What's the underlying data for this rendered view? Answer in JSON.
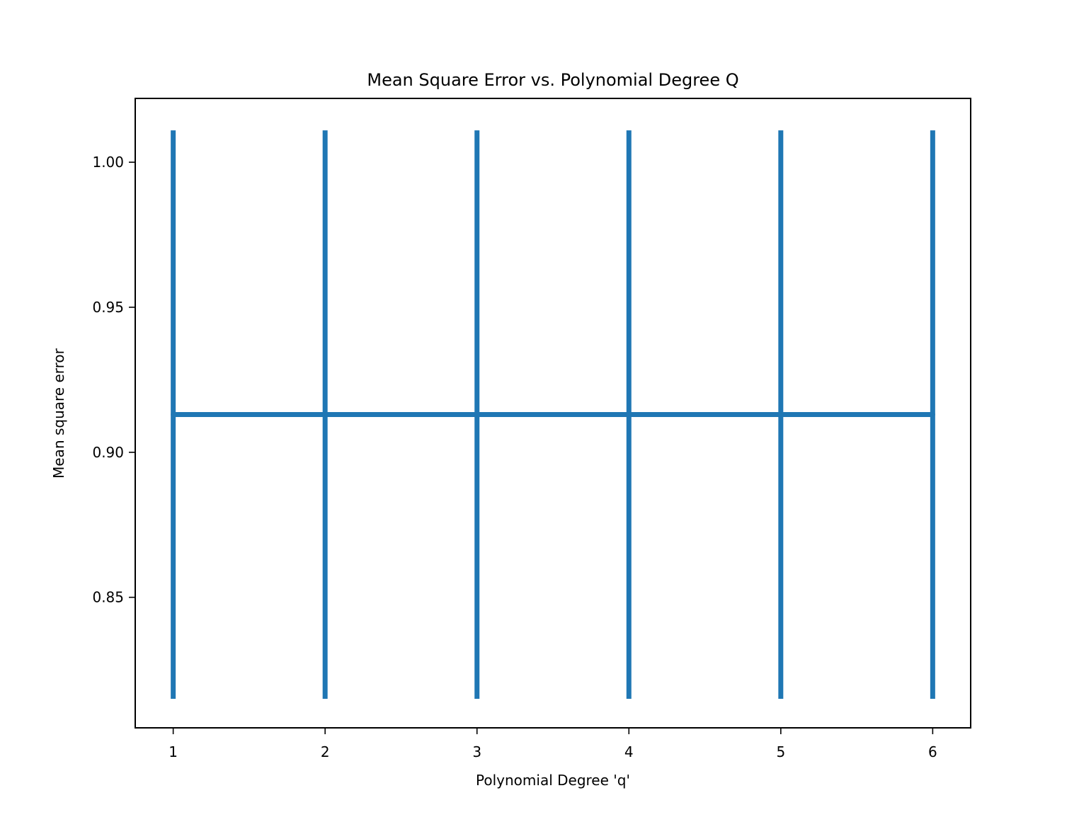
{
  "chart_data": {
    "type": "line",
    "title": "Mean Square Error vs. Polynomial Degree Q",
    "xlabel": "Polynomial Degree 'q'",
    "ylabel": "Mean square error",
    "x": [
      1,
      2,
      3,
      4,
      5,
      6
    ],
    "series": [
      {
        "values": [
          0.913,
          0.913,
          0.913,
          0.913,
          0.913,
          0.913
        ],
        "error_low": [
          0.815,
          0.815,
          0.815,
          0.815,
          0.815,
          0.815
        ],
        "error_high": [
          1.011,
          1.011,
          1.011,
          1.011,
          1.011,
          1.011
        ],
        "color": "#1f77b4"
      }
    ],
    "xlim": [
      0.75,
      6.25
    ],
    "ylim": [
      0.805,
      1.022
    ],
    "xticks": [
      1,
      2,
      3,
      4,
      5,
      6
    ],
    "xtick_labels": [
      "1",
      "2",
      "3",
      "4",
      "5",
      "6"
    ],
    "yticks": [
      0.85,
      0.9,
      0.95,
      1.0
    ],
    "ytick_labels": [
      "0.85",
      "0.90",
      "0.95",
      "1.00"
    ],
    "grid": false,
    "legend": "none"
  }
}
